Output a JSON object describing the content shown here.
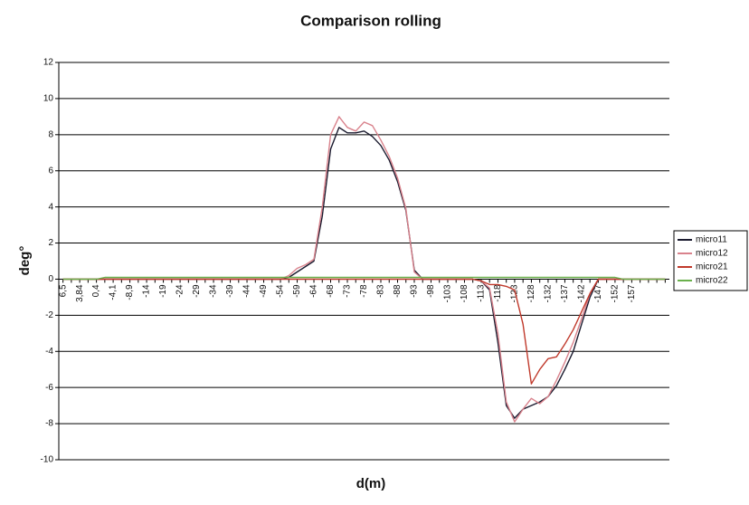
{
  "chart_data": {
    "type": "line",
    "title": "Comparison rolling",
    "x_label": "d(m)",
    "y_label": "deg°",
    "categories": [
      "6,5",
      null,
      "3,84",
      null,
      "0,4",
      null,
      "-4,1",
      null,
      "-8,9",
      null,
      "-14",
      null,
      "-19",
      null,
      "-24",
      null,
      "-29",
      null,
      "-34",
      null,
      "-39",
      null,
      "-44",
      null,
      "-49",
      null,
      "-54",
      null,
      "-59",
      null,
      "-64",
      null,
      "-68",
      null,
      "-73",
      null,
      "-78",
      null,
      "-83",
      null,
      "-88",
      null,
      "-93",
      null,
      "-98",
      null,
      "-103",
      null,
      "-108",
      null,
      "-113",
      null,
      "-118",
      null,
      "-123",
      null,
      "-128",
      null,
      "-132",
      null,
      "-137",
      null,
      "-142",
      null,
      "-147",
      null,
      "-152",
      null,
      "-157",
      null,
      null,
      null,
      null
    ],
    "series": [
      {
        "name": "micro11",
        "color": "#1a1a2e",
        "values": [
          0,
          0,
          0,
          0,
          0,
          0,
          0,
          0,
          0,
          0,
          0,
          0,
          0,
          0,
          0,
          0,
          0,
          0,
          0,
          0,
          0,
          0,
          0,
          0,
          0,
          0,
          0,
          0.1,
          0.4,
          0.7,
          1.0,
          3.5,
          7.2,
          8.4,
          8.1,
          8.1,
          8.2,
          7.9,
          7.4,
          6.6,
          5.4,
          3.8,
          0.5,
          0,
          0,
          0,
          0,
          0,
          0,
          0,
          -0.1,
          -0.6,
          -3.5,
          -7.0,
          -7.7,
          -7.2,
          -7.0,
          -6.8,
          -6.5,
          -5.9,
          -5.0,
          -4.0,
          -2.5,
          -1.0,
          0,
          0,
          0,
          0,
          0,
          0,
          0,
          0,
          0
        ]
      },
      {
        "name": "micro12",
        "color": "#d9828c",
        "values": [
          0,
          0,
          0,
          0,
          0,
          0,
          0,
          0,
          0,
          0,
          0,
          0,
          0,
          0,
          0,
          0,
          0,
          0,
          0,
          0,
          0,
          0,
          0,
          0,
          0,
          0,
          0,
          0.2,
          0.6,
          0.8,
          1.1,
          4.0,
          8.0,
          9.0,
          8.4,
          8.2,
          8.7,
          8.5,
          7.7,
          6.8,
          5.6,
          3.9,
          0.4,
          0,
          0,
          0,
          0,
          0,
          0,
          0,
          -0.1,
          -0.5,
          -3.0,
          -6.8,
          -7.9,
          -7.2,
          -6.6,
          -6.9,
          -6.5,
          -5.6,
          -4.6,
          -3.5,
          -2.2,
          -0.8,
          0,
          0,
          0,
          0,
          0,
          0,
          0,
          0,
          0
        ]
      },
      {
        "name": "micro21",
        "color": "#c0392b",
        "values": [
          0,
          0,
          0,
          0,
          0,
          0,
          0,
          0,
          0,
          0,
          0,
          0,
          0,
          0,
          0,
          0,
          0,
          0,
          0,
          0,
          0,
          0,
          0,
          0,
          0,
          0,
          0,
          0,
          0,
          0,
          0,
          0,
          0,
          0,
          0,
          0,
          0,
          0,
          0,
          0,
          0,
          0,
          0,
          0,
          0,
          0,
          0,
          0,
          0,
          0,
          -0.1,
          -0.3,
          -0.3,
          -0.4,
          -0.6,
          -2.5,
          -5.8,
          -5.0,
          -4.4,
          -4.3,
          -3.6,
          -2.8,
          -1.8,
          -0.8,
          0,
          0,
          0,
          0,
          0,
          0,
          0,
          0,
          0
        ]
      },
      {
        "name": "micro22",
        "color": "#6ab04c",
        "values": [
          0,
          0,
          0,
          0,
          0,
          0.1,
          0.1,
          0.1,
          0.1,
          0.1,
          0.1,
          0.1,
          0.1,
          0.1,
          0.1,
          0.1,
          0.1,
          0.1,
          0.1,
          0.1,
          0.1,
          0.1,
          0.1,
          0.1,
          0.1,
          0.1,
          0.1,
          0.1,
          0.1,
          0.1,
          0.1,
          0.1,
          0.1,
          0.1,
          0.1,
          0.1,
          0.1,
          0.1,
          0.1,
          0.1,
          0.1,
          0.1,
          0.1,
          0.1,
          0.1,
          0.1,
          0.1,
          0.1,
          0.1,
          0.1,
          0.1,
          0.1,
          0.1,
          0.1,
          0.1,
          0.1,
          0.1,
          0.1,
          0.1,
          0.1,
          0.1,
          0.1,
          0.1,
          0.1,
          0.1,
          0.1,
          0.1,
          0,
          0,
          0,
          0,
          0,
          0
        ]
      }
    ],
    "ylim": [
      -10,
      12
    ],
    "yticks": [
      -10,
      -8,
      -6,
      -4,
      -2,
      0,
      2,
      4,
      6,
      8,
      10,
      12
    ],
    "grid": true,
    "legend": "right"
  }
}
